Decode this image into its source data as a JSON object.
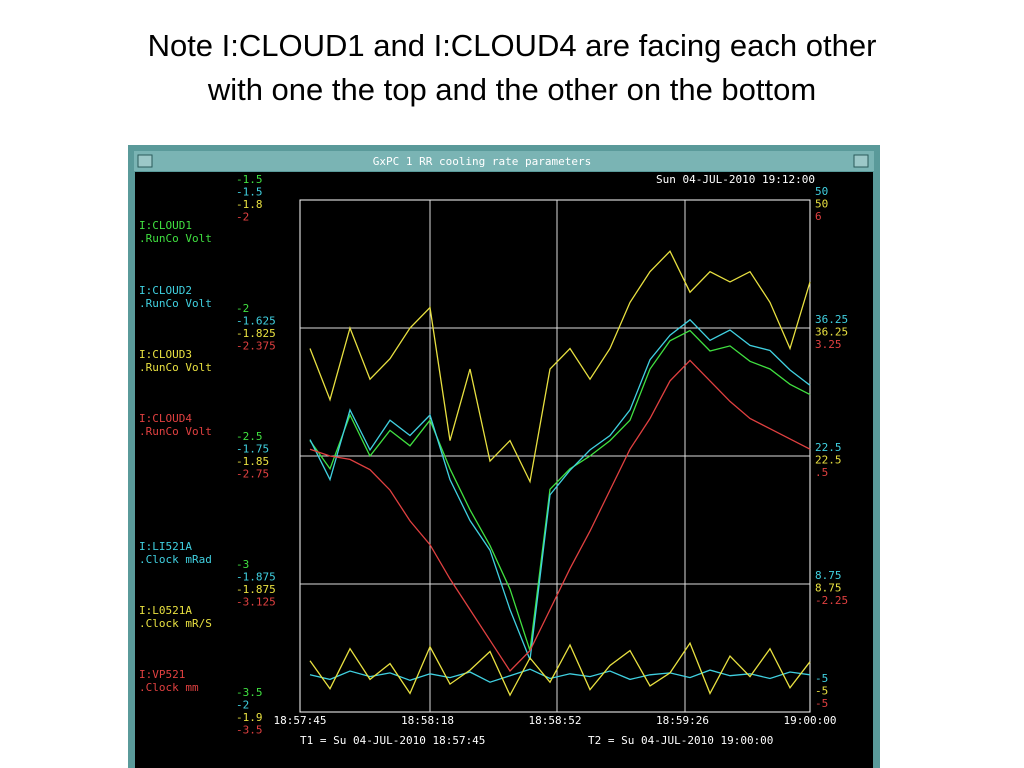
{
  "slide": {
    "title_lines": [
      "Note I:CLOUD1 and I:CLOUD4 are facing each other",
      "with one the top and the other on the bottom"
    ]
  },
  "window": {
    "title": "GxPC 1 RR cooling rate parameters",
    "timestamp": "Sun 04-JUL-2010 19:12:00",
    "channels": [
      {
        "name": "I:CLOUD1",
        "unit": ".RunCo  Volt",
        "color": "#40e040",
        "values": [
          -2.44,
          -2.55,
          -2.34,
          -2.5,
          -2.4,
          -2.46,
          -2.36,
          -2.55,
          -2.71,
          -2.85,
          -3.02,
          -3.26,
          -2.63,
          -2.55,
          -2.5,
          -2.44,
          -2.36,
          -2.16,
          -2.05,
          -2.01,
          -2.09,
          -2.07,
          -2.13,
          -2.16,
          -2.22,
          -2.26
        ]
      },
      {
        "name": "I:CLOUD2",
        "unit": ".RunCo  Volt",
        "color": "#40d0e0",
        "values": [
          -1.734,
          -1.773,
          -1.705,
          -1.744,
          -1.715,
          -1.73,
          -1.71,
          -1.773,
          -1.813,
          -1.842,
          -1.9,
          -1.949,
          -1.788,
          -1.764,
          -1.744,
          -1.73,
          -1.705,
          -1.656,
          -1.632,
          -1.617,
          -1.637,
          -1.627,
          -1.642,
          -1.647,
          -1.666,
          -1.681
        ]
      },
      {
        "name": "I:CLOUD3",
        "unit": ".RunCo  Volt",
        "color": "#e8e040",
        "values": [
          -1.829,
          -1.839,
          -1.825,
          -1.835,
          -1.831,
          -1.825,
          -1.821,
          -1.847,
          -1.833,
          -1.851,
          -1.847,
          -1.855,
          -1.833,
          -1.829,
          -1.835,
          -1.829,
          -1.82,
          -1.814,
          -1.81,
          -1.818,
          -1.814,
          -1.816,
          -1.814,
          -1.82,
          -1.829,
          -1.816
        ]
      },
      {
        "name": "I:CLOUD4",
        "unit": ".RunCo  Volt",
        "color": "#e04040",
        "values": [
          -2.73,
          -2.75,
          -2.76,
          -2.79,
          -2.85,
          -2.94,
          -3.01,
          -3.11,
          -3.2,
          -3.29,
          -3.38,
          -3.32,
          -3.2,
          -3.08,
          -2.97,
          -2.85,
          -2.73,
          -2.64,
          -2.53,
          -2.47,
          -2.53,
          -2.59,
          -2.64,
          -2.67,
          -2.7,
          -2.73
        ]
      },
      {
        "name": "I:LI521A",
        "unit": ".Clock  mRad",
        "color": "#40d0e0",
        "values": [
          -1.0,
          -1.5,
          -0.6,
          -1.2,
          -0.8,
          -1.6,
          -0.9,
          -1.3,
          -0.7,
          -1.8,
          -1.1,
          -0.4,
          -1.4,
          -0.9,
          -1.2,
          -0.6,
          -1.5,
          -1.0,
          -0.8,
          -1.3,
          -0.5,
          -1.1,
          -0.9,
          -1.4,
          -0.7,
          -1.0
        ]
      },
      {
        "name": "I:L0521A",
        "unit": ".Clock  mR/S",
        "color": "#e8e040",
        "values": [
          0.5,
          -2.5,
          1.8,
          -1.5,
          0.2,
          -3.0,
          2.0,
          -2.0,
          -0.5,
          1.5,
          -3.2,
          0.8,
          -1.8,
          2.2,
          -2.6,
          0.0,
          1.6,
          -2.2,
          -0.8,
          2.4,
          -3.0,
          1.0,
          -1.2,
          1.8,
          -2.4,
          0.4
        ]
      },
      {
        "name": "I:VP521",
        "unit": ".Clock  mm",
        "color": "#e04040"
      }
    ],
    "left_ticks": [
      [
        -1.5,
        -1.5,
        -1.8,
        -2
      ],
      [
        -2,
        -1.625,
        -1.825,
        -2.375
      ],
      [
        -2.5,
        -1.75,
        -1.85,
        -2.75
      ],
      [
        -3,
        -1.875,
        -1.875,
        -3.125
      ],
      [
        -3.5,
        -2,
        -1.9,
        -3.5
      ]
    ],
    "right_ticks": [
      [
        50,
        50,
        6
      ],
      [
        36.25,
        36.25,
        3.25
      ],
      [
        22.5,
        22.5,
        {
          "value": 0.5,
          "label": ".5"
        }
      ],
      [
        8.75,
        8.75,
        -2.25
      ],
      [
        -5,
        -5,
        -5
      ]
    ],
    "time_ticks": [
      "18:57:45",
      "18:58:18",
      "18:58:52",
      "18:59:26",
      "19:00:00"
    ],
    "t1": "T1 = Su 04-JUL-2010 18:57:45",
    "t2": "T2 = Su 04-JUL-2010 19:00:00"
  }
}
